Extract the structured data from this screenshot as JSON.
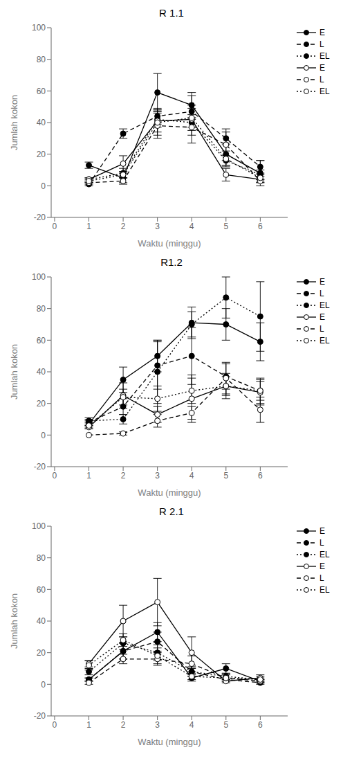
{
  "chart_data": [
    {
      "type": "line",
      "title": "R 1.1",
      "xlabel": "Waktu (minggu)",
      "ylabel": "Jumlah kokon",
      "x": [
        1,
        2,
        3,
        4,
        5,
        6
      ],
      "xlim": [
        -0.1,
        6.8
      ],
      "xticks": [
        0,
        1,
        2,
        3,
        4,
        5,
        6
      ],
      "ylim": [
        -20,
        100
      ],
      "yticks": [
        -20,
        0,
        20,
        40,
        60,
        80,
        100
      ],
      "grid": false,
      "legend": "upper right",
      "series": [
        {
          "name": "E",
          "color": "#000000",
          "marker": "filled",
          "line_style": "solid",
          "values": [
            13,
            5,
            59,
            51,
            20,
            8
          ],
          "errors": [
            2,
            3,
            12,
            8,
            7,
            8
          ]
        },
        {
          "name": "L",
          "color": "#000000",
          "marker": "filled",
          "line_style": "dashed",
          "values": [
            1,
            33,
            44,
            47,
            30,
            12
          ],
          "errors": [
            1,
            3,
            5,
            4,
            4,
            4
          ]
        },
        {
          "name": "EL",
          "color": "#000000",
          "marker": "filled",
          "line_style": "dotted",
          "values": [
            4,
            8,
            42,
            40,
            16,
            7
          ],
          "errors": [
            1,
            3,
            5,
            5,
            3,
            3
          ]
        },
        {
          "name": "E",
          "color": "#000000",
          "marker": "open",
          "line_style": "solid",
          "values": [
            4,
            14,
            41,
            42,
            7,
            4
          ],
          "errors": [
            1,
            5,
            7,
            15,
            4,
            2
          ]
        },
        {
          "name": "L",
          "color": "#000000",
          "marker": "open",
          "line_style": "dashed",
          "values": [
            2,
            3,
            38,
            37,
            26,
            3
          ],
          "errors": [
            1,
            2,
            8,
            5,
            10,
            1
          ]
        },
        {
          "name": "EL",
          "color": "#000000",
          "marker": "open",
          "line_style": "dotted",
          "values": [
            3,
            7,
            40,
            43,
            17,
            5
          ],
          "errors": [
            1,
            2,
            8,
            6,
            5,
            2
          ]
        }
      ]
    },
    {
      "type": "line",
      "title": "R1.2",
      "xlabel": "Waktu (minggu)",
      "ylabel": "Jumlah kokon",
      "x": [
        1,
        2,
        3,
        4,
        5,
        6
      ],
      "xlim": [
        -0.1,
        6.8
      ],
      "xticks": [
        0,
        1,
        2,
        3,
        4,
        5,
        6
      ],
      "ylim": [
        -20,
        100
      ],
      "yticks": [
        -20,
        0,
        20,
        40,
        60,
        80,
        100
      ],
      "grid": false,
      "legend": "upper right",
      "series": [
        {
          "name": "E",
          "color": "#000000",
          "marker": "filled",
          "line_style": "solid",
          "values": [
            7,
            35,
            50,
            71,
            70,
            59
          ],
          "errors": [
            2,
            8,
            10,
            10,
            10,
            12
          ]
        },
        {
          "name": "L",
          "color": "#000000",
          "marker": "filled",
          "line_style": "dashed",
          "values": [
            8,
            18,
            44,
            50,
            37,
            28
          ],
          "errors": [
            2,
            5,
            15,
            18,
            8,
            6
          ]
        },
        {
          "name": "EL",
          "color": "#000000",
          "marker": "filled",
          "line_style": "dotted",
          "values": [
            9,
            10,
            40,
            70,
            87,
            75
          ],
          "errors": [
            2,
            3,
            20,
            8,
            13,
            22
          ]
        },
        {
          "name": "E",
          "color": "#000000",
          "marker": "open",
          "line_style": "solid",
          "values": [
            5,
            25,
            13,
            23,
            31,
            27
          ],
          "errors": [
            1,
            8,
            5,
            15,
            8,
            8
          ]
        },
        {
          "name": "L",
          "color": "#000000",
          "marker": "open",
          "line_style": "dashed",
          "values": [
            0,
            1,
            9,
            14,
            36,
            16
          ],
          "errors": [
            0,
            1,
            4,
            4,
            10,
            8
          ]
        },
        {
          "name": "EL",
          "color": "#000000",
          "marker": "open",
          "line_style": "dotted",
          "values": [
            6,
            24,
            23,
            28,
            31,
            28
          ],
          "errors": [
            2,
            5,
            8,
            8,
            6,
            8
          ]
        }
      ]
    },
    {
      "type": "line",
      "title": "R 2.1",
      "xlabel": "Waktu (minggu)",
      "ylabel": "Jumlah kokon",
      "x": [
        1,
        2,
        3,
        4,
        5,
        6
      ],
      "xlim": [
        -0.1,
        6.8
      ],
      "xticks": [
        0,
        1,
        2,
        3,
        4,
        5,
        6
      ],
      "ylim": [
        -20,
        100
      ],
      "yticks": [
        -20,
        0,
        20,
        40,
        60,
        80,
        100
      ],
      "grid": false,
      "legend": "upper right",
      "series": [
        {
          "name": "E",
          "color": "#000000",
          "marker": "filled",
          "line_style": "solid",
          "values": [
            3,
            21,
            33,
            4,
            10,
            2
          ],
          "errors": [
            1,
            5,
            6,
            2,
            3,
            1
          ]
        },
        {
          "name": "L",
          "color": "#000000",
          "marker": "filled",
          "line_style": "dashed",
          "values": [
            3,
            21,
            27,
            8,
            3,
            1
          ],
          "errors": [
            1,
            5,
            6,
            3,
            1,
            1
          ]
        },
        {
          "name": "EL",
          "color": "#000000",
          "marker": "filled",
          "line_style": "dotted",
          "values": [
            8,
            26,
            20,
            8,
            5,
            3
          ],
          "errors": [
            2,
            4,
            5,
            3,
            2,
            2
          ]
        },
        {
          "name": "E",
          "color": "#000000",
          "marker": "open",
          "line_style": "solid",
          "values": [
            13,
            40,
            52,
            20,
            2,
            4
          ],
          "errors": [
            2,
            10,
            15,
            10,
            1,
            2
          ]
        },
        {
          "name": "L",
          "color": "#000000",
          "marker": "open",
          "line_style": "dashed",
          "values": [
            1,
            16,
            16,
            13,
            4,
            2
          ],
          "errors": [
            1,
            3,
            4,
            5,
            2,
            1
          ]
        },
        {
          "name": "EL",
          "color": "#000000",
          "marker": "open",
          "line_style": "dotted",
          "values": [
            12,
            28,
            18,
            5,
            4,
            3
          ],
          "errors": [
            3,
            4,
            5,
            2,
            2,
            1
          ]
        }
      ]
    }
  ]
}
